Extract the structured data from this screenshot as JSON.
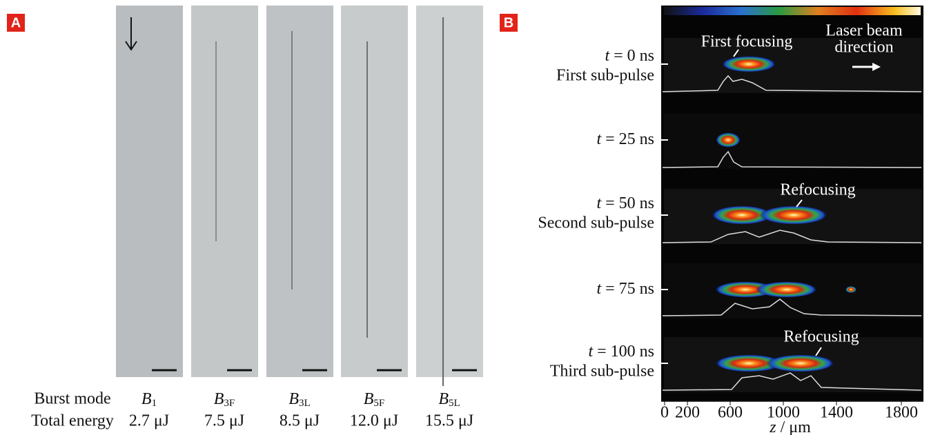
{
  "panel_a": {
    "label": "A",
    "row_labels": [
      "Burst mode",
      "Total energy"
    ],
    "columns": [
      {
        "mode": {
          "base": "B",
          "sub": "1"
        },
        "energy": "2.7 μJ"
      },
      {
        "mode": {
          "base": "B",
          "sub": "3F"
        },
        "energy": "7.5 μJ"
      },
      {
        "mode": {
          "base": "B",
          "sub": "3L"
        },
        "energy": "8.5 μJ"
      },
      {
        "mode": {
          "base": "B",
          "sub": "5F"
        },
        "energy": "12.0 μJ"
      },
      {
        "mode": {
          "base": "B",
          "sub": "5L"
        },
        "energy": "15.5 μJ"
      }
    ]
  },
  "panel_b": {
    "label": "B",
    "rows": [
      {
        "var": "t",
        "time": "= 0 ns",
        "name": "First sub-pulse"
      },
      {
        "var": "t",
        "time": "= 25 ns"
      },
      {
        "var": "t",
        "time": "= 50 ns",
        "name": "Second sub-pulse"
      },
      {
        "var": "t",
        "time": "= 75 ns"
      },
      {
        "var": "t",
        "time": "= 100 ns",
        "name": "Third sub-pulse"
      }
    ],
    "annotations": {
      "first_focusing": "First focusing",
      "beam_line1": "Laser beam",
      "beam_line2": "direction",
      "refocusing_1": "Refocusing",
      "refocusing_2": "Refocusing"
    },
    "x_ticks": [
      "0",
      "200",
      "600",
      "1000",
      "1400",
      "1800"
    ],
    "x_label": {
      "var": "z",
      "unit": "/ μm"
    }
  }
}
